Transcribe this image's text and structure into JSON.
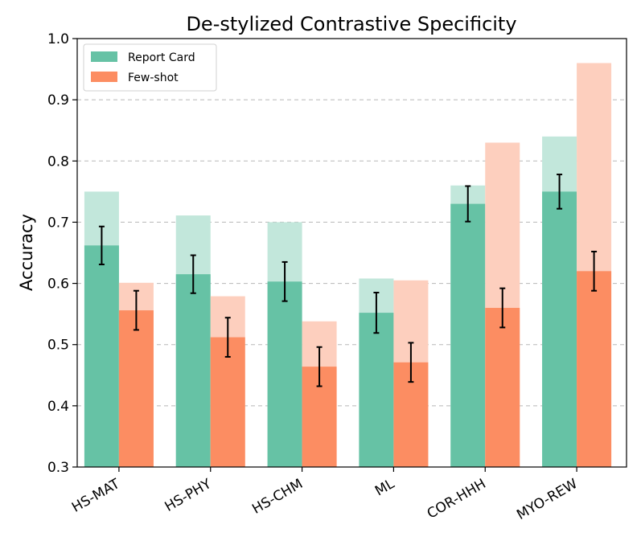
{
  "chart_data": {
    "type": "bar",
    "title": "De-stylized Contrastive Specificity",
    "ylabel": "Accuracy",
    "xlabel": "",
    "ylim": [
      0.3,
      1.0
    ],
    "yticks": [
      "0.3",
      "0.4",
      "0.5",
      "0.6",
      "0.7",
      "0.8",
      "0.9",
      "1.0"
    ],
    "grid": "y-dashed",
    "legend_position": "top-left",
    "categories": [
      "HS-MAT",
      "HS-PHY",
      "HS-CHM",
      "ML",
      "COR-HHH",
      "MYO-REW"
    ],
    "series": [
      {
        "name": "Report Card",
        "color": "#66c2a5",
        "light_color": "#c2e7db",
        "values": [
          0.662,
          0.615,
          0.603,
          0.552,
          0.73,
          0.75
        ],
        "upper_values": [
          0.75,
          0.711,
          0.7,
          0.608,
          0.76,
          0.84
        ],
        "error": [
          0.031,
          0.031,
          0.032,
          0.033,
          0.029,
          0.028
        ]
      },
      {
        "name": "Few-shot",
        "color": "#fc8d62",
        "light_color": "#fdcfbe",
        "values": [
          0.556,
          0.512,
          0.464,
          0.471,
          0.56,
          0.62
        ],
        "upper_values": [
          0.601,
          0.579,
          0.538,
          0.605,
          0.83,
          0.96
        ],
        "error": [
          0.032,
          0.032,
          0.032,
          0.032,
          0.032,
          0.032
        ]
      }
    ]
  }
}
